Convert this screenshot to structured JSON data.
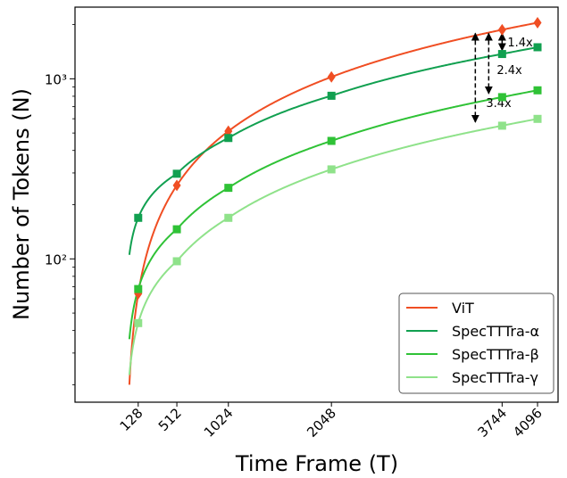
{
  "chart_data": {
    "type": "line",
    "xlabel": "Time Frame (T)",
    "ylabel": "Number of Tokens (N)",
    "xlim": [
      -500,
      4300
    ],
    "ylim": [
      16,
      2500
    ],
    "yscale": "log",
    "xticks": [
      128,
      512,
      1024,
      2048,
      3744,
      4096
    ],
    "xtick_labels": [
      "128",
      "512",
      "1024",
      "2048",
      "3744",
      "4096"
    ],
    "yticks": [
      100,
      1000
    ],
    "ytick_labels": [
      "10²",
      "10³"
    ],
    "grid": false,
    "legend": {
      "position": "lower-right"
    },
    "x": [
      128,
      512,
      1024,
      2048,
      3744,
      4096
    ],
    "series": [
      {
        "name": "ViT",
        "color": "#f04e23",
        "marker": "diamond",
        "values": [
          64,
          256,
          512,
          1024,
          1872,
          2048
        ]
      },
      {
        "name": "SpecTTTra-α",
        "color": "#11a050",
        "marker": "square",
        "values": [
          169,
          297,
          469,
          805,
          1373,
          1497
        ]
      },
      {
        "name": "SpecTTTra-β",
        "color": "#2fc236",
        "marker": "square",
        "values": [
          68,
          146,
          248,
          452,
          791,
          863
        ]
      },
      {
        "name": "SpecTTTra-γ",
        "color": "#8fe28a",
        "marker": "square",
        "values": [
          44,
          97,
          169,
          314,
          549,
          599
        ]
      }
    ],
    "annotations": [
      {
        "text": "1.4x",
        "x": 3744
      },
      {
        "text": "2.4x",
        "x": 3744
      },
      {
        "text": "3.4x",
        "x": 3744
      }
    ]
  }
}
